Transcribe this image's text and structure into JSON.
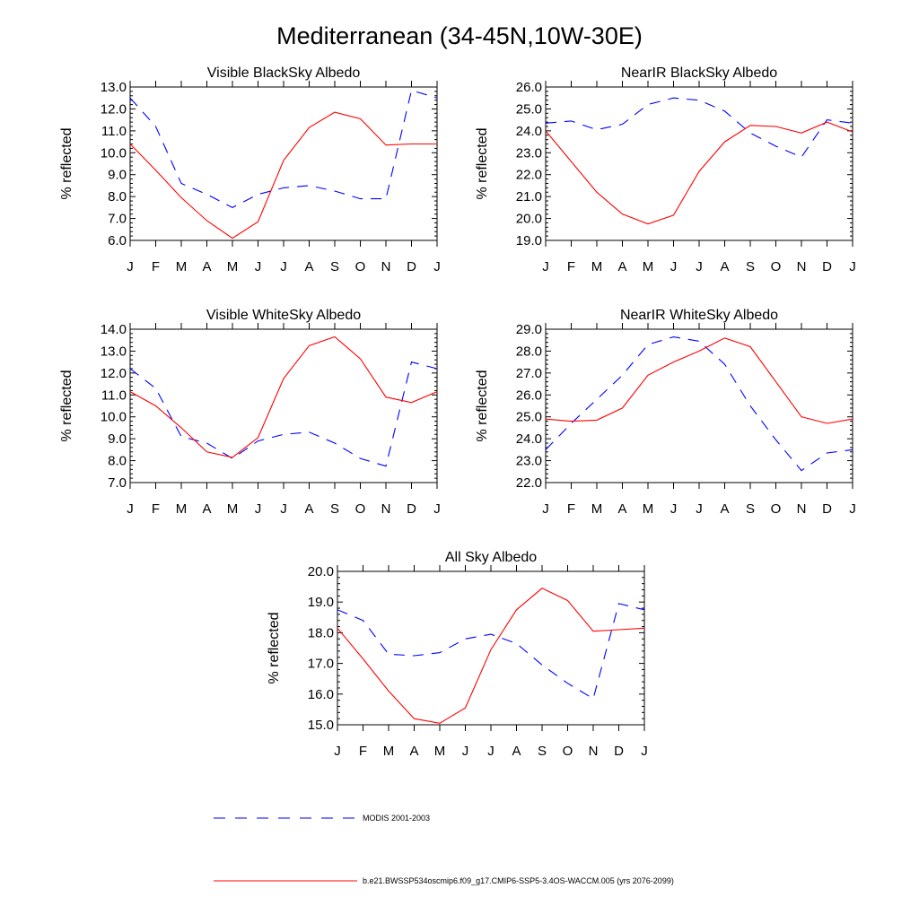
{
  "figure": {
    "title": "Mediterranean (34-45N,10W-30E)"
  },
  "legend": {
    "entries": [
      {
        "label": "MODIS 2001-2003",
        "color": "#0000ff",
        "dash": "dashed"
      },
      {
        "label": "b.e21.BWSSP534oscmip6.f09_g17.CMIP6-SSP5-3.4OS-WACCM.005 (yrs 2076-2099)",
        "color": "#ff0000",
        "dash": "solid"
      }
    ]
  },
  "chart_data": [
    {
      "type": "line",
      "title": "Visible BlackSky Albedo",
      "xlabel": "",
      "ylabel": "% reflected",
      "categories": [
        "J",
        "F",
        "M",
        "A",
        "M",
        "J",
        "J",
        "A",
        "S",
        "O",
        "N",
        "D",
        "J"
      ],
      "ylim": [
        6.0,
        13.0
      ],
      "yticks": [
        "6.0",
        "7.0",
        "8.0",
        "9.0",
        "10.0",
        "11.0",
        "12.0",
        "13.0"
      ],
      "series": [
        {
          "name": "MODIS 2001-2003",
          "color": "#0000ff",
          "dash": "dashed",
          "values": [
            12.5,
            11.2,
            8.6,
            8.1,
            7.5,
            8.1,
            8.4,
            8.5,
            8.25,
            7.9,
            7.9,
            12.85,
            12.5
          ]
        },
        {
          "name": "b.e21.BWSSP534oscmip6.f09_g17.CMIP6-SSP5-3.4OS-WACCM.005 (yrs 2076-2099)",
          "color": "#ff0000",
          "dash": "solid",
          "values": [
            10.4,
            9.2,
            7.95,
            6.9,
            6.1,
            6.85,
            9.65,
            11.15,
            11.85,
            11.55,
            10.35,
            10.4,
            10.4
          ]
        }
      ]
    },
    {
      "type": "line",
      "title": "NearIR BlackSky Albedo",
      "xlabel": "",
      "ylabel": "% reflected",
      "categories": [
        "J",
        "F",
        "M",
        "A",
        "M",
        "J",
        "J",
        "A",
        "S",
        "O",
        "N",
        "D",
        "J"
      ],
      "ylim": [
        19.0,
        26.0
      ],
      "yticks": [
        "19.0",
        "20.0",
        "21.0",
        "22.0",
        "23.0",
        "24.0",
        "25.0",
        "26.0"
      ],
      "series": [
        {
          "name": "MODIS 2001-2003",
          "color": "#0000ff",
          "dash": "dashed",
          "values": [
            24.35,
            24.45,
            24.05,
            24.3,
            25.2,
            25.5,
            25.4,
            24.9,
            23.9,
            23.3,
            22.8,
            24.5,
            24.35
          ]
        },
        {
          "name": "b.e21.BWSSP534oscmip6.f09_g17.CMIP6-SSP5-3.4OS-WACCM.005 (yrs 2076-2099)",
          "color": "#ff0000",
          "dash": "solid",
          "values": [
            24.0,
            22.6,
            21.2,
            20.2,
            19.75,
            20.15,
            22.15,
            23.5,
            24.25,
            24.2,
            23.9,
            24.4,
            23.95
          ]
        }
      ]
    },
    {
      "type": "line",
      "title": "Visible WhiteSky Albedo",
      "xlabel": "",
      "ylabel": "% reflected",
      "categories": [
        "J",
        "F",
        "M",
        "A",
        "M",
        "J",
        "J",
        "A",
        "S",
        "O",
        "N",
        "D",
        "J"
      ],
      "ylim": [
        7.0,
        14.0
      ],
      "yticks": [
        "7.0",
        "8.0",
        "9.0",
        "10.0",
        "11.0",
        "12.0",
        "13.0",
        "14.0"
      ],
      "series": [
        {
          "name": "MODIS 2001-2003",
          "color": "#0000ff",
          "dash": "dashed",
          "values": [
            12.2,
            11.3,
            9.1,
            8.8,
            8.1,
            8.9,
            9.2,
            9.3,
            8.8,
            8.1,
            7.75,
            12.5,
            12.2
          ]
        },
        {
          "name": "b.e21.BWSSP534oscmip6.f09_g17.CMIP6-SSP5-3.4OS-WACCM.005 (yrs 2076-2099)",
          "color": "#ff0000",
          "dash": "solid",
          "values": [
            11.15,
            10.5,
            9.5,
            8.4,
            8.15,
            9.05,
            11.75,
            13.25,
            13.65,
            12.65,
            10.9,
            10.65,
            11.15
          ]
        }
      ]
    },
    {
      "type": "line",
      "title": "NearIR WhiteSky Albedo",
      "xlabel": "",
      "ylabel": "% reflected",
      "categories": [
        "J",
        "F",
        "M",
        "A",
        "M",
        "J",
        "J",
        "A",
        "S",
        "O",
        "N",
        "D",
        "J"
      ],
      "ylim": [
        22.0,
        29.0
      ],
      "yticks": [
        "22.0",
        "23.0",
        "24.0",
        "25.0",
        "26.0",
        "27.0",
        "28.0",
        "29.0"
      ],
      "series": [
        {
          "name": "MODIS 2001-2003",
          "color": "#0000ff",
          "dash": "dashed",
          "values": [
            23.5,
            24.7,
            25.8,
            26.9,
            28.3,
            28.65,
            28.45,
            27.4,
            25.5,
            23.95,
            22.55,
            23.35,
            23.5
          ]
        },
        {
          "name": "b.e21.BWSSP534oscmip6.f09_g17.CMIP6-SSP5-3.4OS-WACCM.005 (yrs 2076-2099)",
          "color": "#ff0000",
          "dash": "solid",
          "values": [
            24.9,
            24.8,
            24.85,
            25.4,
            26.9,
            27.5,
            28.0,
            28.6,
            28.2,
            26.6,
            25.0,
            24.7,
            24.9
          ]
        }
      ]
    },
    {
      "type": "line",
      "title": "All Sky Albedo",
      "xlabel": "",
      "ylabel": "% reflected",
      "categories": [
        "J",
        "F",
        "M",
        "A",
        "M",
        "J",
        "J",
        "A",
        "S",
        "O",
        "N",
        "D",
        "J"
      ],
      "ylim": [
        15.0,
        20.0
      ],
      "yticks": [
        "15.0",
        "16.0",
        "17.0",
        "18.0",
        "19.0",
        "20.0"
      ],
      "series": [
        {
          "name": "MODIS 2001-2003",
          "color": "#0000ff",
          "dash": "dashed",
          "values": [
            18.75,
            18.4,
            17.3,
            17.25,
            17.35,
            17.8,
            17.95,
            17.65,
            16.95,
            16.35,
            15.85,
            18.95,
            18.75
          ]
        },
        {
          "name": "b.e21.BWSSP534oscmip6.f09_g17.CMIP6-SSP5-3.4OS-WACCM.005 (yrs 2076-2099)",
          "color": "#ff0000",
          "dash": "solid",
          "values": [
            18.15,
            17.15,
            16.1,
            15.2,
            15.05,
            15.55,
            17.45,
            18.75,
            19.45,
            19.05,
            18.05,
            18.1,
            18.15
          ]
        }
      ]
    }
  ]
}
